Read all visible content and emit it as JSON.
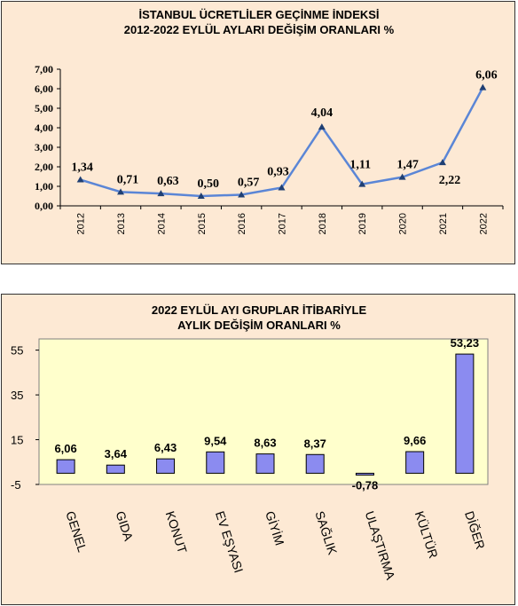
{
  "chart_data": [
    {
      "type": "line",
      "title": "İSTANBUL ÜCRETLİLER GEÇİNME İNDEKSİ",
      "subtitle": "2012-2022 EYLÜL AYLARI DEĞİŞİM ORANLARI %",
      "categories": [
        "2012",
        "2013",
        "2014",
        "2015",
        "2016",
        "2017",
        "2018",
        "2019",
        "2020",
        "2021",
        "2022"
      ],
      "values": [
        1.34,
        0.71,
        0.63,
        0.5,
        0.57,
        0.93,
        4.04,
        1.11,
        1.47,
        2.22,
        6.06
      ],
      "value_labels": [
        "1,34",
        "0,71",
        "0,63",
        "0,50",
        "0,57",
        "0,93",
        "4,04",
        "1,11",
        "1,47",
        "2,22",
        "6,06"
      ],
      "ylim": [
        0,
        7
      ],
      "yticks": [
        "0,00",
        "1,00",
        "2,00",
        "3,00",
        "4,00",
        "5,00",
        "6,00",
        "7,00"
      ],
      "grid": false,
      "colors": {
        "line": "#5b86d6",
        "marker": "#1f3f73",
        "background": "#fde9d4"
      }
    },
    {
      "type": "bar",
      "title": "2022 EYLÜL AYI GRUPLAR İTİBARİYLE",
      "subtitle": "AYLIK DEĞİŞİM ORANLARI %",
      "categories": [
        "GENEL",
        "GIDA",
        "KONUT",
        "EV EŞYASI",
        "GİYİM",
        "SAĞLIK",
        "ULAŞTIRMA",
        "KÜLTÜR",
        "DİĞER"
      ],
      "values": [
        6.06,
        3.64,
        6.43,
        9.54,
        8.63,
        8.37,
        -0.78,
        9.66,
        53.23
      ],
      "value_labels": [
        "6,06",
        "3,64",
        "6,43",
        "9,54",
        "8,63",
        "8,37",
        "-0,78",
        "9,66",
        "53,23"
      ],
      "ylim": [
        -5,
        60
      ],
      "yticks": [
        "-5",
        "15",
        "35",
        "55"
      ],
      "grid": false,
      "colors": {
        "bar": "#8b8bf0",
        "bar_border": "#000000",
        "plot_background": "#ffffcc",
        "background": "#fde9d4"
      }
    }
  ]
}
